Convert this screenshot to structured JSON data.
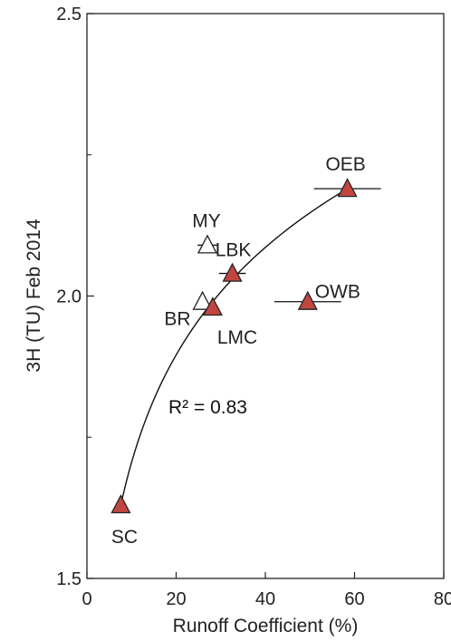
{
  "chart_data": {
    "type": "scatter",
    "title": "",
    "xlabel": "Runoff Coefficient (%)",
    "ylabel": "3H (TU) Feb 2014",
    "xlim": [
      0,
      80
    ],
    "ylim": [
      1.5,
      2.5
    ],
    "xticks": [
      0,
      20,
      40,
      60,
      80
    ],
    "yticks": [
      1.5,
      2.0,
      2.5
    ],
    "ytick_labels": [
      "1.5",
      "2.0",
      "2.5"
    ],
    "minor_yticks": [
      1.75,
      2.25
    ],
    "grid": false,
    "legend": "none",
    "colors": {
      "filled": "#c0463f",
      "open": "#ffffff",
      "edge": "#222222"
    },
    "points": [
      {
        "label": "SC",
        "x": 7.6,
        "y": 1.63,
        "filled": true,
        "xerr": 0
      },
      {
        "label": "BR",
        "x": 25.9,
        "y": 1.99,
        "filled": false,
        "xerr": 0
      },
      {
        "label": "LMC",
        "x": 28.2,
        "y": 1.98,
        "filled": true,
        "xerr": 0
      },
      {
        "label": "MY",
        "x": 27.0,
        "y": 2.09,
        "filled": false,
        "xerr": 2.2
      },
      {
        "label": "LBK",
        "x": 32.6,
        "y": 2.04,
        "filled": true,
        "xerr": 3.0
      },
      {
        "label": "OWB",
        "x": 49.5,
        "y": 1.99,
        "filled": true,
        "xerr": 7.5
      },
      {
        "label": "OEB",
        "x": 58.4,
        "y": 2.19,
        "filled": true,
        "xerr": 7.5
      }
    ],
    "fit": {
      "type": "logarithmic",
      "x_range": [
        7.6,
        58.4
      ],
      "y_at_ends": [
        1.63,
        2.19
      ]
    },
    "annotation": {
      "text": "R² = 0.83"
    }
  }
}
